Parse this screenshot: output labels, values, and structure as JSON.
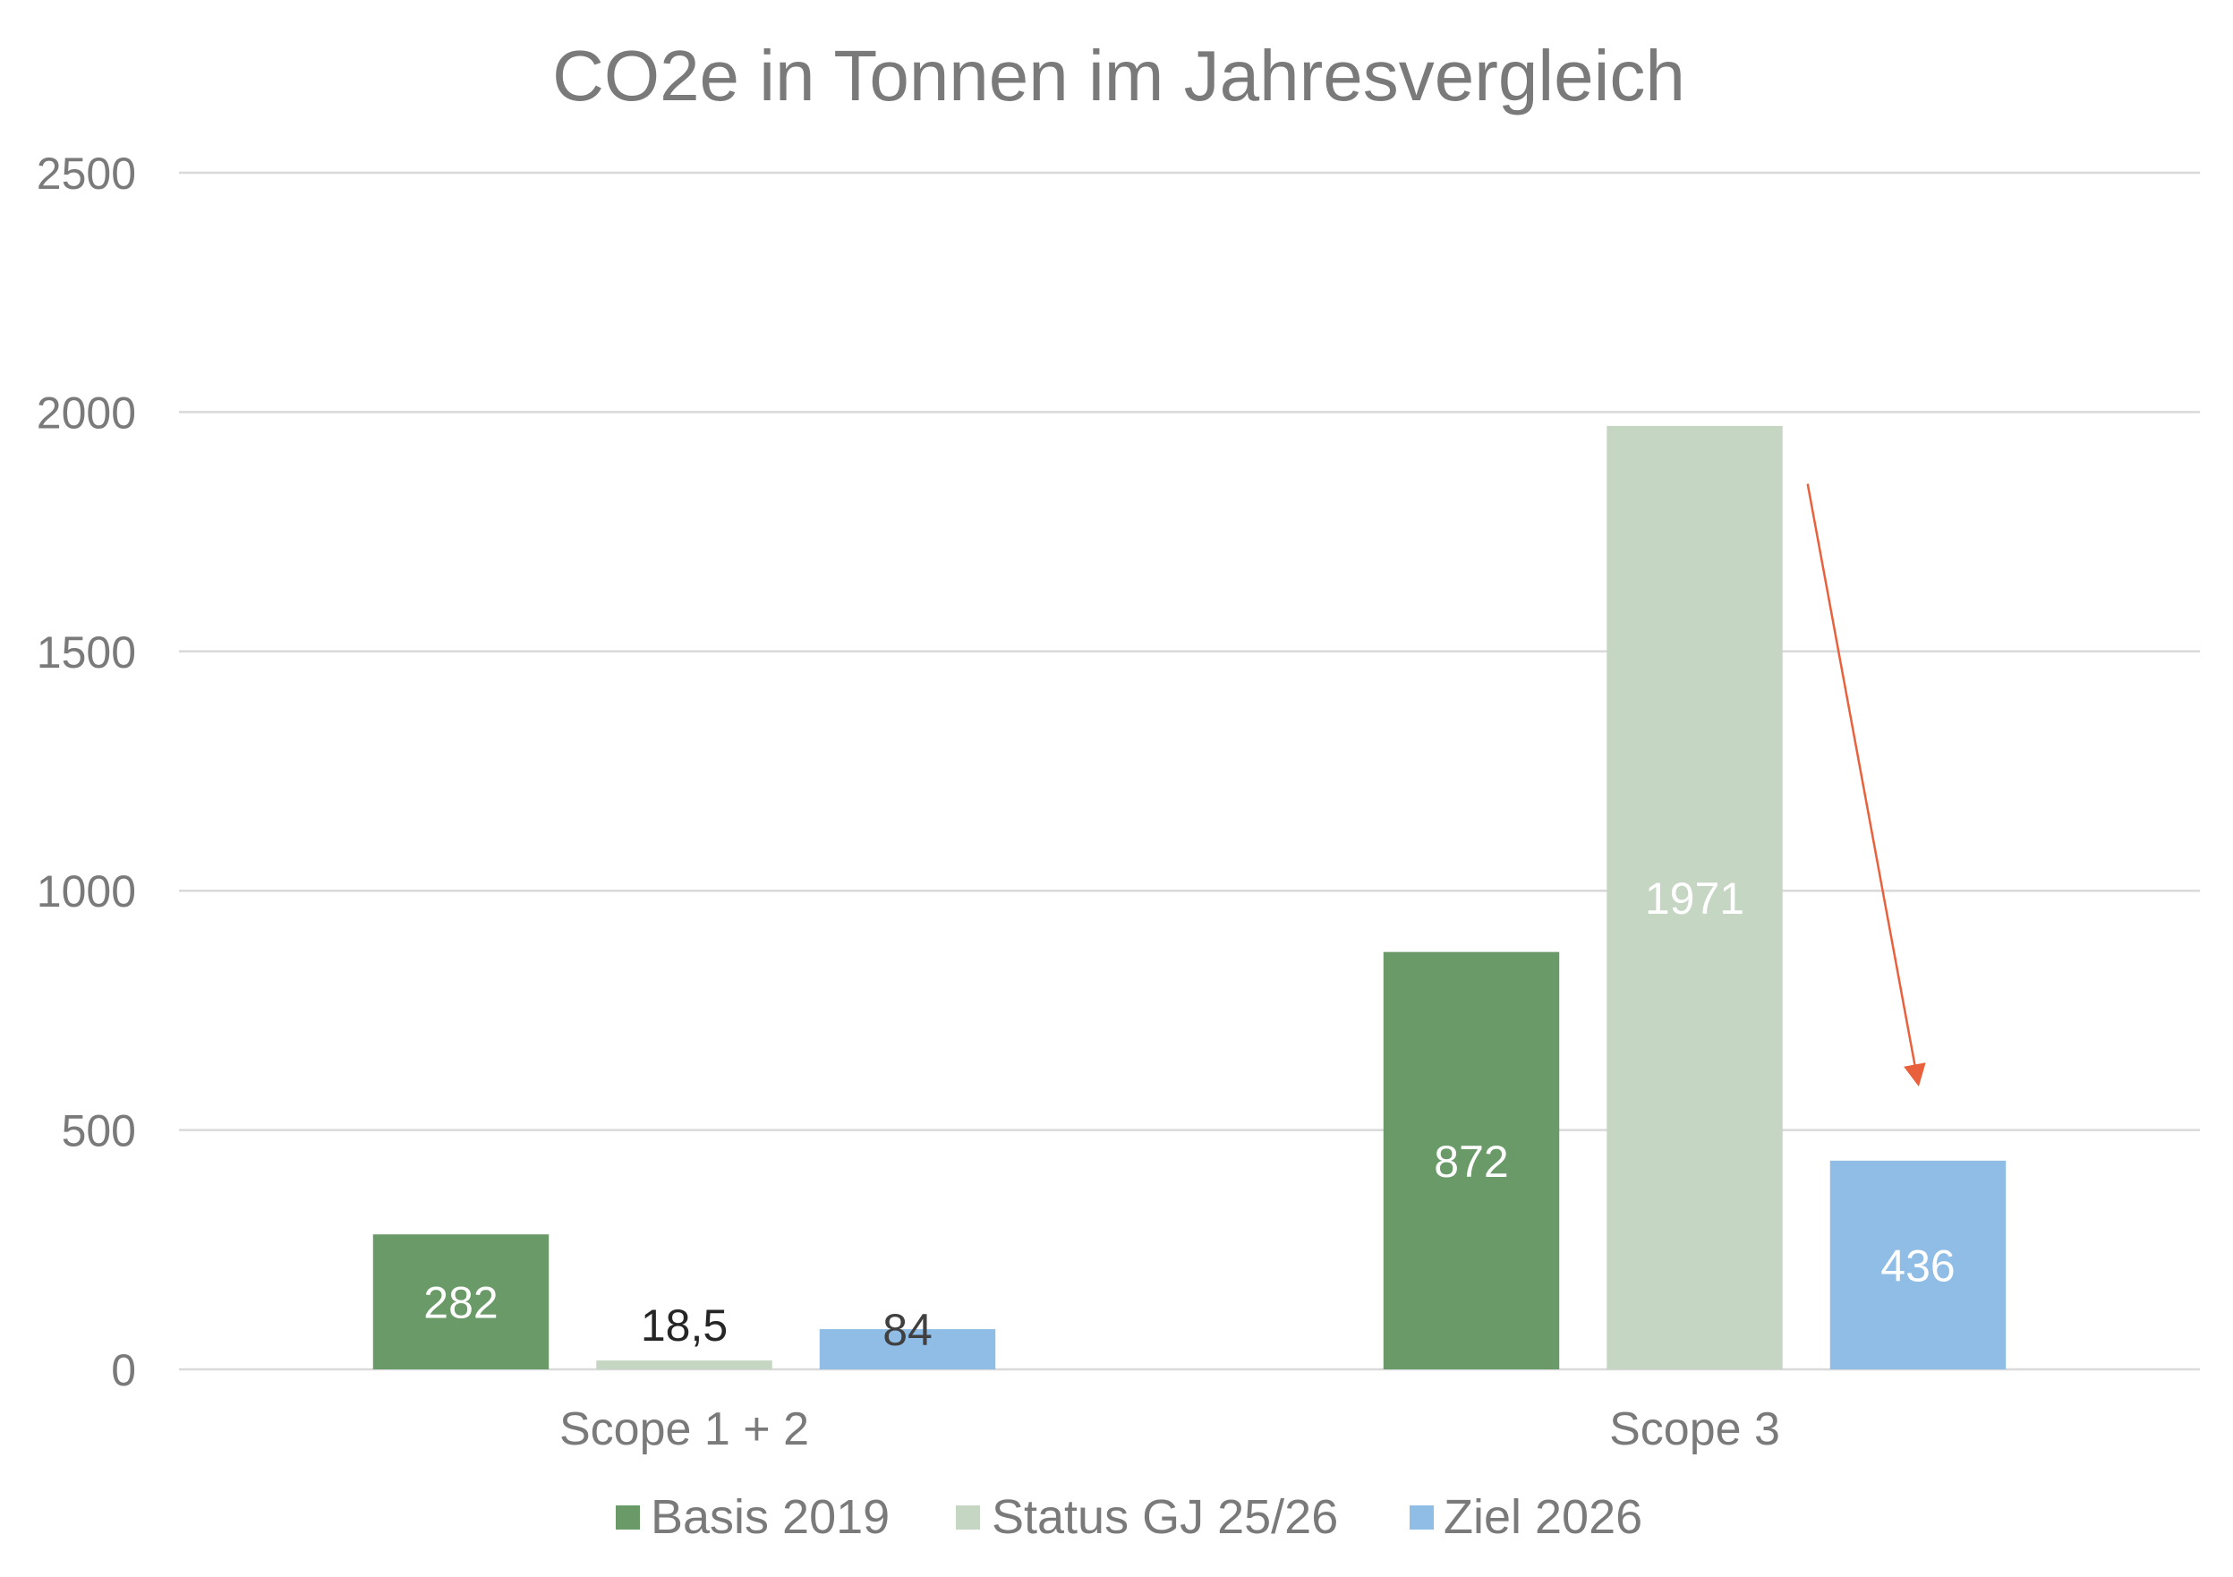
{
  "chart_data": {
    "type": "bar",
    "title": "CO2e in Tonnen im Jahresvergleich",
    "categories": [
      "Scope 1 + 2",
      "Scope 3"
    ],
    "series": [
      {
        "name": "Basis 2019",
        "values": [
          282,
          872
        ],
        "labels": [
          "282",
          "872"
        ],
        "color": "#6a9a67",
        "label_color": "#ffffff"
      },
      {
        "name": "Status GJ 25/26",
        "values": [
          18.5,
          1971
        ],
        "labels": [
          "18,5",
          "1971"
        ],
        "color": "#c5d6c3",
        "label_color": "#ffffff"
      },
      {
        "name": "Ziel 2026",
        "values": [
          84,
          436
        ],
        "labels": [
          "84",
          "436"
        ],
        "color": "#8fbde6",
        "label_color": "#ffffff"
      }
    ],
    "ylim": [
      0,
      2500
    ],
    "yticks": [
      "0",
      "500",
      "1000",
      "1500",
      "2000",
      "2500"
    ],
    "grid": true,
    "legend": "bottom",
    "annotation": {
      "type": "arrow",
      "color": "#e8603c",
      "from_value": 1850,
      "to_value": 600,
      "category": "Scope 3",
      "description": "downward arrow toward Ziel 2026"
    }
  }
}
